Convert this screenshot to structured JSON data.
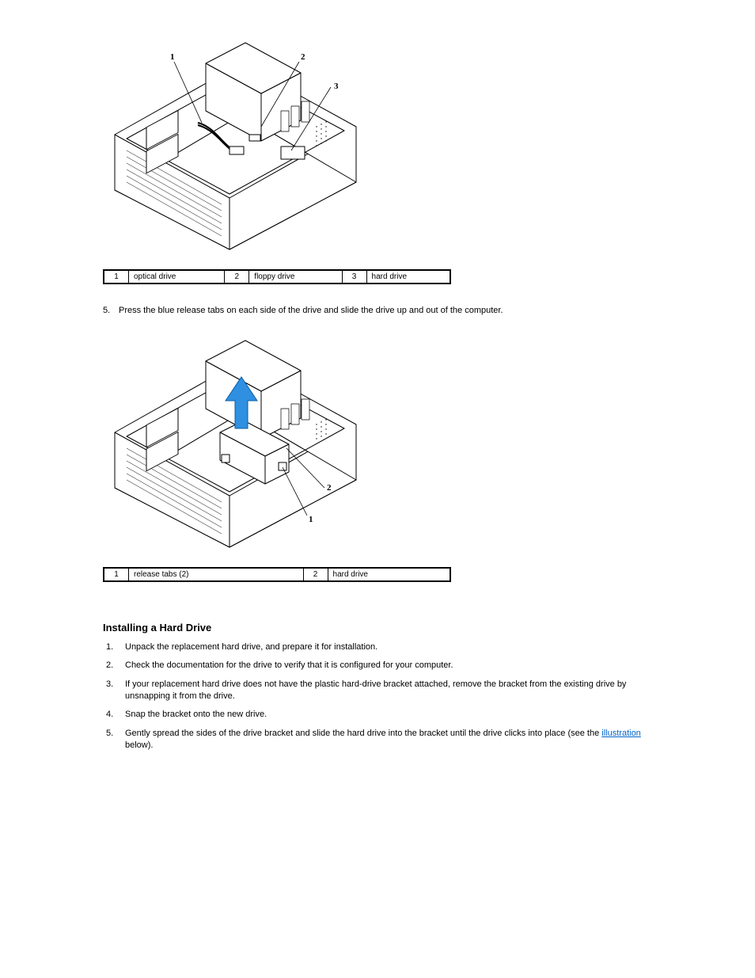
{
  "figure1": {
    "callouts": {
      "l1": "1",
      "l2": "2",
      "l3": "3"
    },
    "legend": [
      {
        "num": "1",
        "label": "optical drive"
      },
      {
        "num": "2",
        "label": "floppy drive"
      },
      {
        "num": "3",
        "label": "hard drive"
      }
    ]
  },
  "step5_text": "Press the blue release tabs on each side of the drive and slide the drive up and out of the computer.",
  "figure2": {
    "callouts": {
      "l1": "1",
      "l2": "2"
    },
    "legend": [
      {
        "num": "1",
        "label": "release tabs (2)"
      },
      {
        "num": "2",
        "label": "hard drive"
      }
    ],
    "arrow_color": "#2f8fe0"
  },
  "section_heading": "Installing a Hard Drive",
  "install_steps": [
    {
      "html": "Unpack the replacement hard drive, and prepare it for installation."
    },
    {
      "html": "Check the documentation for the drive to verify that it is configured for your computer."
    },
    {
      "html": "If your replacement hard drive does not have the plastic hard-drive bracket attached, remove the bracket from the existing drive by unsnapping it from the drive."
    },
    {
      "html": "Snap the bracket onto the new drive."
    },
    {
      "html": "Gently spread the sides of the drive bracket and slide the hard drive into the bracket until the drive clicks into place (see the <a class=\"link\" href=\"#\" data-name=\"illustration-link\" data-interactable=\"true\">illustration</a> below)."
    }
  ],
  "colors": {
    "background": "#ffffff",
    "text": "#000000",
    "link": "#0066cc",
    "table_border": "#000000"
  }
}
